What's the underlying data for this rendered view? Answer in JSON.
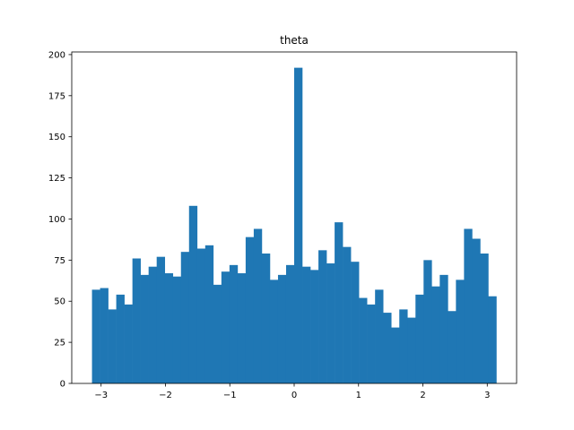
{
  "chart_data": {
    "type": "bar",
    "title": "theta",
    "xlabel": "",
    "ylabel": "",
    "bar_color": "#1f77b4",
    "xlim": [
      -3.456,
      3.456
    ],
    "ylim": [
      0,
      201.6
    ],
    "x_ticks": [
      -3,
      -2,
      -1,
      0,
      1,
      2,
      3
    ],
    "x_tick_labels": [
      "−3",
      "−2",
      "−1",
      "0",
      "1",
      "2",
      "3"
    ],
    "y_ticks": [
      0,
      25,
      50,
      75,
      100,
      125,
      150,
      175,
      200
    ],
    "y_tick_labels": [
      "0",
      "25",
      "50",
      "75",
      "100",
      "125",
      "150",
      "175",
      "200"
    ],
    "bin_range": [
      -3.1416,
      3.1416
    ],
    "bin_count": 50,
    "values": [
      57,
      58,
      45,
      54,
      48,
      76,
      66,
      71,
      77,
      67,
      65,
      80,
      108,
      82,
      84,
      60,
      68,
      72,
      67,
      89,
      94,
      79,
      63,
      66,
      72,
      192,
      71,
      69,
      81,
      73,
      98,
      83,
      74,
      52,
      48,
      57,
      43,
      34,
      45,
      40,
      54,
      75,
      59,
      66,
      44,
      63,
      94,
      88,
      79,
      53
    ]
  }
}
